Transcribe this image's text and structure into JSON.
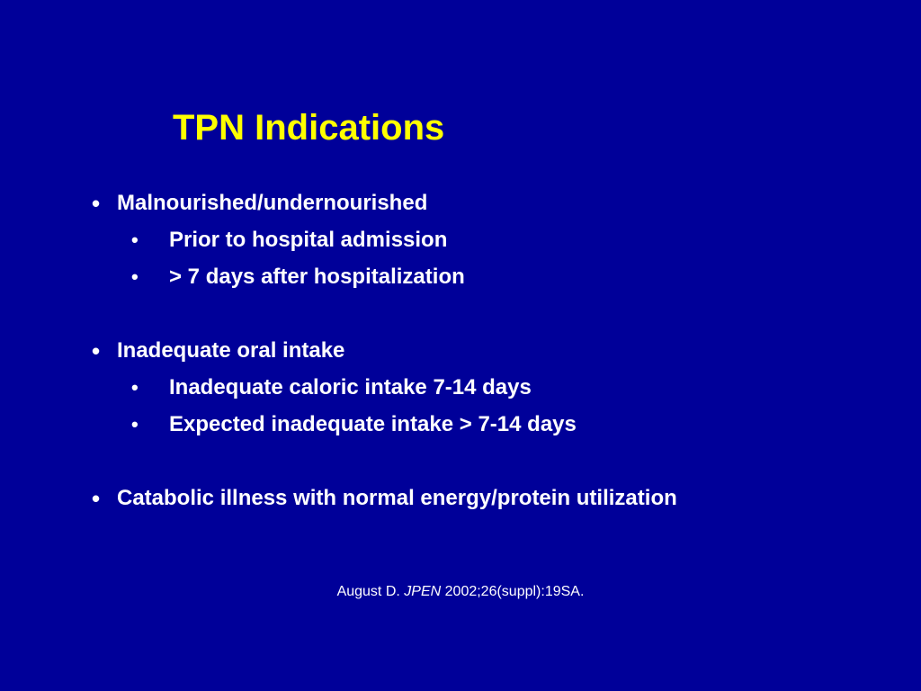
{
  "slide": {
    "title": "TPN Indications",
    "bullets": [
      {
        "text": "Malnourished/undernourished",
        "sub": [
          "Prior to hospital admission",
          "> 7 days after hospitalization"
        ]
      },
      {
        "text": "Inadequate oral intake",
        "sub": [
          "Inadequate caloric intake 7-14 days",
          "Expected inadequate intake > 7-14 days"
        ]
      },
      {
        "text": "Catabolic illness with normal energy/protein utilization",
        "sub": []
      }
    ],
    "bullet_char": "•",
    "citation": {
      "author": "August D.",
      "journal": "JPEN",
      "details": "2002;26(suppl):19SA."
    },
    "colors": {
      "background": "#000099",
      "title": "#ffff00",
      "text": "#ffffff"
    }
  }
}
